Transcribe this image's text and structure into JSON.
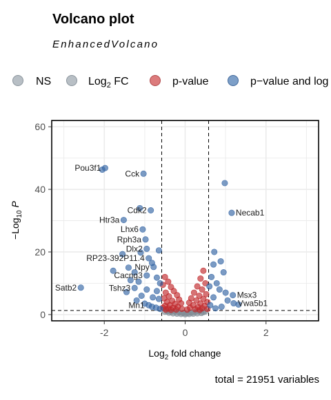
{
  "chart_data": {
    "type": "scatter",
    "title": "Volcano plot",
    "subtitle": "EnhancedVolcano",
    "xlabel_main": "Log",
    "xlabel_sub": "2",
    "xlabel_rest": " fold change",
    "ylabel_pre": "−Log",
    "ylabel_sub": "10",
    "ylabel_var": " P",
    "caption": "total = 21951 variables",
    "xlim": [
      -3.3,
      3.3
    ],
    "ylim": [
      -2,
      62
    ],
    "x_ticks": [
      -2,
      0,
      2
    ],
    "x_tick_labels": [
      "-2",
      "0",
      "2"
    ],
    "y_ticks": [
      0,
      20,
      40,
      60
    ],
    "y_tick_labels": [
      "0",
      "20",
      "40",
      "60"
    ],
    "grid": true,
    "fc_cutoff": 0.58,
    "p_cutoff_log10": 1.3,
    "legend": {
      "position": "top",
      "entries": [
        {
          "key": "ns",
          "label": "NS",
          "color": "#9aa5ad"
        },
        {
          "key": "fc",
          "label_main": "Log",
          "label_sub": "2",
          "label_rest": " FC",
          "color": "#9aa5ad"
        },
        {
          "key": "p",
          "label": "p-value",
          "color": "#c8393b"
        },
        {
          "key": "both",
          "label": "p−value and log",
          "color": "#3b6fa8"
        }
      ]
    },
    "colors": {
      "ns": "#808b94",
      "p": "#c0282b",
      "both": "#3465a4"
    },
    "series": [
      {
        "name": "p−value and log",
        "color_key": "both",
        "points": [
          {
            "x": -1.98,
            "y": 46.8,
            "label": "Pou3f1"
          },
          {
            "x": -2.05,
            "y": 46.3
          },
          {
            "x": -1.03,
            "y": 45.0,
            "label": "Cck"
          },
          {
            "x": -1.12,
            "y": 34.0
          },
          {
            "x": -0.85,
            "y": 33.3,
            "label": "Cdk2"
          },
          {
            "x": -1.52,
            "y": 30.2,
            "label": "Htr3a"
          },
          {
            "x": -1.05,
            "y": 27.2,
            "label": "Lhx6"
          },
          {
            "x": -0.98,
            "y": 24.0,
            "label": "Rph3a"
          },
          {
            "x": -0.95,
            "y": 21.0,
            "label": "Dlx2"
          },
          {
            "x": -0.65,
            "y": 20.5
          },
          {
            "x": -1.55,
            "y": 19.3
          },
          {
            "x": -1.1,
            "y": 19.8
          },
          {
            "x": -0.9,
            "y": 18.0,
            "label": "RP23-392P11.4"
          },
          {
            "x": -0.82,
            "y": 16.5
          },
          {
            "x": -1.4,
            "y": 15.0
          },
          {
            "x": -0.78,
            "y": 15.2,
            "label": "Npy"
          },
          {
            "x": -1.78,
            "y": 14.0
          },
          {
            "x": -1.25,
            "y": 13.5
          },
          {
            "x": -0.95,
            "y": 12.5,
            "label": "Cacng3"
          },
          {
            "x": -0.7,
            "y": 11.8
          },
          {
            "x": -1.35,
            "y": 11.0
          },
          {
            "x": -1.15,
            "y": 10.5
          },
          {
            "x": -0.62,
            "y": 10.0
          },
          {
            "x": -2.58,
            "y": 8.6,
            "label": "Satb2"
          },
          {
            "x": -1.25,
            "y": 8.5,
            "label": "Tshz3"
          },
          {
            "x": -0.95,
            "y": 8.0
          },
          {
            "x": -1.45,
            "y": 7.2
          },
          {
            "x": -0.7,
            "y": 7.5
          },
          {
            "x": -1.08,
            "y": 6.0
          },
          {
            "x": -0.8,
            "y": 5.5
          },
          {
            "x": -1.2,
            "y": 4.5
          },
          {
            "x": -0.65,
            "y": 5.0
          },
          {
            "x": -1.0,
            "y": 3.5
          },
          {
            "x": -0.9,
            "y": 3.0,
            "label": "Mn1"
          },
          {
            "x": -0.72,
            "y": 2.2
          },
          {
            "x": -0.62,
            "y": 1.8
          },
          {
            "x": -0.82,
            "y": 2.5
          },
          {
            "x": 0.98,
            "y": 42.0
          },
          {
            "x": 1.15,
            "y": 32.5,
            "label": "Necab1"
          },
          {
            "x": 0.72,
            "y": 20.0
          },
          {
            "x": 0.88,
            "y": 17.0
          },
          {
            "x": 0.7,
            "y": 16.0
          },
          {
            "x": 0.95,
            "y": 13.5
          },
          {
            "x": 0.65,
            "y": 12.0
          },
          {
            "x": 0.78,
            "y": 10.0
          },
          {
            "x": 0.6,
            "y": 9.0
          },
          {
            "x": 0.85,
            "y": 8.0
          },
          {
            "x": 1.0,
            "y": 7.0
          },
          {
            "x": 1.18,
            "y": 6.2,
            "label": "Msx3"
          },
          {
            "x": 0.7,
            "y": 5.5
          },
          {
            "x": 1.05,
            "y": 4.5
          },
          {
            "x": 1.2,
            "y": 3.6,
            "label": "Vwa5b1"
          },
          {
            "x": 1.32,
            "y": 3.2
          },
          {
            "x": 0.62,
            "y": 3.0
          },
          {
            "x": 0.9,
            "y": 2.5
          },
          {
            "x": 0.75,
            "y": 2.0
          }
        ]
      },
      {
        "name": "p-value",
        "color_key": "p",
        "points": [
          {
            "x": -0.5,
            "y": 12.0
          },
          {
            "x": -0.42,
            "y": 10.5
          },
          {
            "x": -0.55,
            "y": 9.5
          },
          {
            "x": -0.35,
            "y": 8.8
          },
          {
            "x": -0.28,
            "y": 7.5
          },
          {
            "x": -0.48,
            "y": 7.0
          },
          {
            "x": -0.2,
            "y": 6.2
          },
          {
            "x": -0.4,
            "y": 5.8
          },
          {
            "x": -0.52,
            "y": 5.2
          },
          {
            "x": -0.15,
            "y": 4.8
          },
          {
            "x": -0.32,
            "y": 4.4
          },
          {
            "x": -0.45,
            "y": 4.0
          },
          {
            "x": -0.1,
            "y": 3.6
          },
          {
            "x": -0.25,
            "y": 3.4
          },
          {
            "x": -0.38,
            "y": 3.0
          },
          {
            "x": -0.5,
            "y": 2.8
          },
          {
            "x": -0.18,
            "y": 2.5
          },
          {
            "x": -0.3,
            "y": 2.2
          },
          {
            "x": -0.42,
            "y": 2.0
          },
          {
            "x": -0.55,
            "y": 2.2
          },
          {
            "x": -0.08,
            "y": 1.8
          },
          {
            "x": -0.22,
            "y": 1.6
          },
          {
            "x": -0.35,
            "y": 1.5
          },
          {
            "x": -0.48,
            "y": 1.6
          },
          {
            "x": 0.45,
            "y": 14.0
          },
          {
            "x": 0.38,
            "y": 11.5
          },
          {
            "x": 0.5,
            "y": 10.0
          },
          {
            "x": 0.3,
            "y": 9.0
          },
          {
            "x": 0.42,
            "y": 8.0
          },
          {
            "x": 0.22,
            "y": 7.0
          },
          {
            "x": 0.52,
            "y": 6.5
          },
          {
            "x": 0.35,
            "y": 6.0
          },
          {
            "x": 0.15,
            "y": 5.2
          },
          {
            "x": 0.45,
            "y": 5.0
          },
          {
            "x": 0.28,
            "y": 4.5
          },
          {
            "x": 0.55,
            "y": 4.0
          },
          {
            "x": 0.1,
            "y": 3.8
          },
          {
            "x": 0.38,
            "y": 3.5
          },
          {
            "x": 0.2,
            "y": 3.0
          },
          {
            "x": 0.48,
            "y": 2.8
          },
          {
            "x": 0.32,
            "y": 2.4
          },
          {
            "x": 0.12,
            "y": 2.2
          },
          {
            "x": 0.42,
            "y": 2.0
          },
          {
            "x": 0.25,
            "y": 1.7
          },
          {
            "x": 0.55,
            "y": 1.8
          },
          {
            "x": 0.05,
            "y": 1.6
          },
          {
            "x": 0.36,
            "y": 1.5
          }
        ]
      },
      {
        "name": "NS",
        "color_key": "ns",
        "points": [
          {
            "x": -0.45,
            "y": 1.1
          },
          {
            "x": -0.35,
            "y": 0.9
          },
          {
            "x": -0.25,
            "y": 1.0
          },
          {
            "x": -0.15,
            "y": 0.7
          },
          {
            "x": -0.05,
            "y": 0.5
          },
          {
            "x": 0.05,
            "y": 0.4
          },
          {
            "x": 0.15,
            "y": 0.6
          },
          {
            "x": 0.25,
            "y": 0.9
          },
          {
            "x": 0.35,
            "y": 1.1
          },
          {
            "x": 0.45,
            "y": 0.8
          },
          {
            "x": -0.3,
            "y": 0.4
          },
          {
            "x": -0.1,
            "y": 0.2
          },
          {
            "x": 0.0,
            "y": 0.1
          },
          {
            "x": 0.1,
            "y": 0.2
          },
          {
            "x": 0.3,
            "y": 0.4
          },
          {
            "x": -0.2,
            "y": 0.3
          },
          {
            "x": 0.2,
            "y": 0.3
          },
          {
            "x": -0.4,
            "y": 0.6
          },
          {
            "x": 0.4,
            "y": 0.5
          },
          {
            "x": -0.5,
            "y": 0.9
          },
          {
            "x": 0.5,
            "y": 1.0
          }
        ]
      }
    ]
  }
}
